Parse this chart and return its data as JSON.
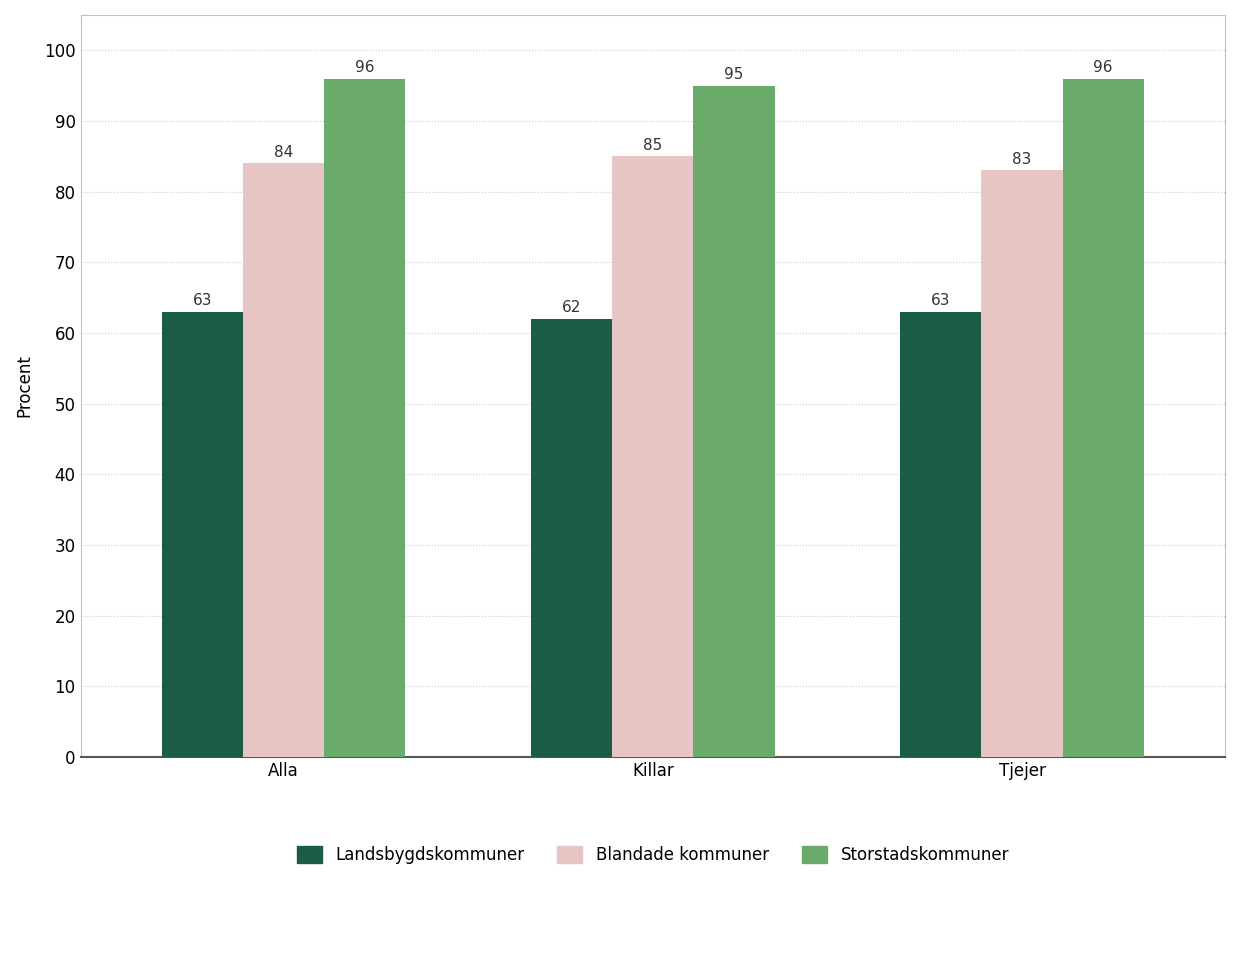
{
  "categories": [
    "Alla",
    "Killar",
    "Tjejer"
  ],
  "series": [
    {
      "label": "Landsbygdskommuner",
      "color": "#1a5c45",
      "values": [
        63,
        62,
        63
      ]
    },
    {
      "label": "Blandade kommuner",
      "color": "#e8c5c5",
      "values": [
        84,
        85,
        83
      ]
    },
    {
      "label": "Storstadskommuner",
      "color": "#6aaa6a",
      "values": [
        96,
        95,
        96
      ]
    }
  ],
  "ylabel": "Procent",
  "ylim": [
    0,
    105
  ],
  "yticks": [
    0,
    10,
    20,
    30,
    40,
    50,
    60,
    70,
    80,
    90,
    100
  ],
  "bar_width": 0.22,
  "background_color": "#ffffff",
  "border_color": "#b0c8c8",
  "grid_color": "#cccccc",
  "label_fontsize": 12,
  "tick_fontsize": 12,
  "ylabel_fontsize": 12,
  "value_fontsize": 11,
  "legend_fontsize": 12
}
